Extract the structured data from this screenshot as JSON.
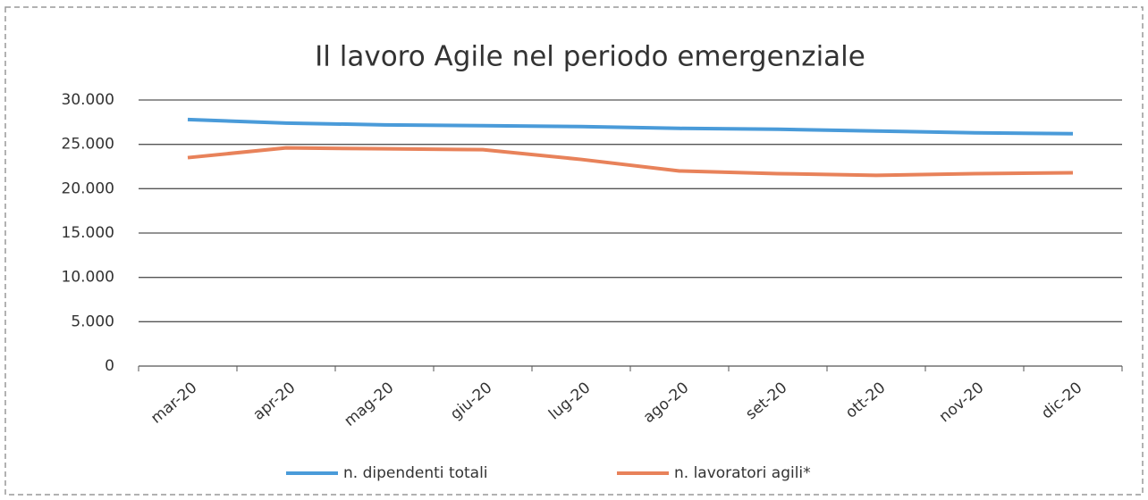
{
  "chart_data": {
    "type": "line",
    "title": "Il lavoro Agile nel periodo emergenziale",
    "categories": [
      "mar-20",
      "apr-20",
      "mag-20",
      "giu-20",
      "lug-20",
      "ago-20",
      "set-20",
      "ott-20",
      "nov-20",
      "dic-20"
    ],
    "series": [
      {
        "name": "n. dipendenti totali",
        "color": "#4a9bd9",
        "values": [
          27800,
          27400,
          27200,
          27100,
          27000,
          26800,
          26700,
          26500,
          26300,
          26200
        ]
      },
      {
        "name": "n. lavoratori agili*",
        "color": "#e8825a",
        "values": [
          23500,
          24600,
          24500,
          24400,
          23300,
          22000,
          21700,
          21500,
          21700,
          21800
        ]
      }
    ],
    "ylim": [
      0,
      30000
    ],
    "yticks": [
      0,
      {
        "value": 5000,
        "label": "5.000"
      },
      {
        "value": 10000,
        "label": "10.000"
      },
      {
        "value": 15000,
        "label": "15.000"
      },
      {
        "value": 20000,
        "label": "20.000"
      },
      {
        "value": 25000,
        "label": "25.000"
      },
      {
        "value": 30000,
        "label": "30.000"
      }
    ],
    "grid": true,
    "legend": "bottom"
  }
}
